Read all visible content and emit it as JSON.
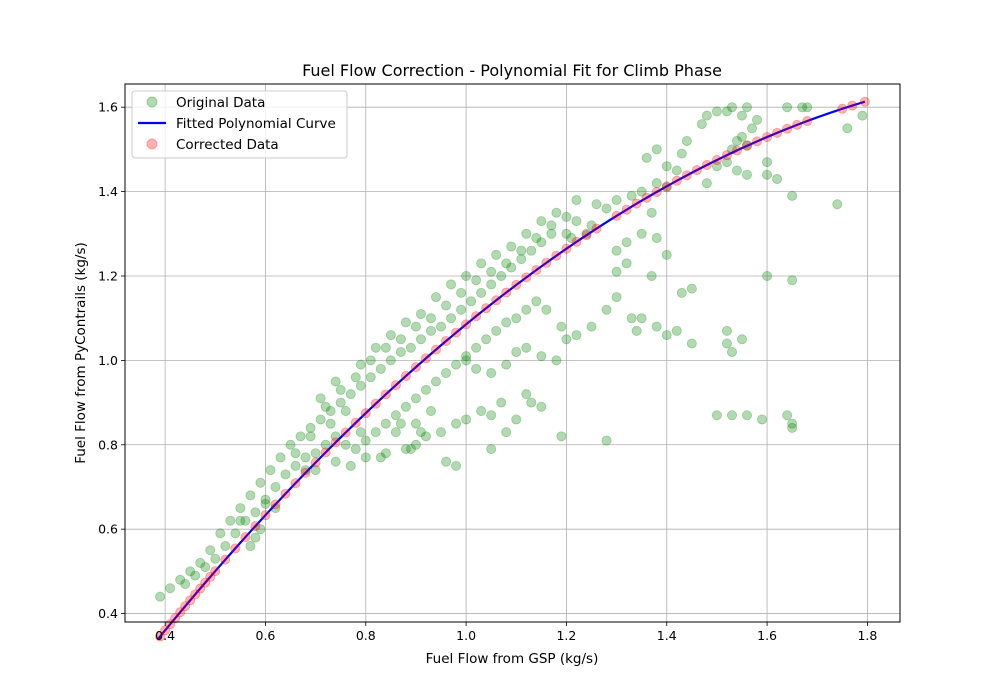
{
  "chart_data": {
    "type": "scatter",
    "title": "Fuel Flow Correction - Polynomial Fit for Climb Phase",
    "xlabel": "Fuel Flow from GSP (kg/s)",
    "ylabel": "Fuel Flow from PyContrails (kg/s)",
    "xlim": [
      0.32,
      1.865
    ],
    "ylim": [
      0.38,
      1.655
    ],
    "xticks": [
      0.4,
      0.6,
      0.8,
      1.0,
      1.2,
      1.4,
      1.6,
      1.8
    ],
    "yticks": [
      0.4,
      0.6,
      0.8,
      1.0,
      1.2,
      1.4,
      1.6
    ],
    "xtick_labels": [
      "0.4",
      "0.6",
      "0.8",
      "1.0",
      "1.2",
      "1.4",
      "1.6",
      "1.8"
    ],
    "ytick_labels": [
      "0.4",
      "0.6",
      "0.8",
      "1.0",
      "1.2",
      "1.4",
      "1.6"
    ],
    "grid": true,
    "legend_position": "top-left",
    "series": [
      {
        "name": "Original Data",
        "kind": "scatter",
        "color": "#008000",
        "opacity": 0.3,
        "points": [
          [
            0.39,
            0.44
          ],
          [
            0.41,
            0.46
          ],
          [
            0.43,
            0.48
          ],
          [
            0.45,
            0.5
          ],
          [
            0.47,
            0.52
          ],
          [
            0.49,
            0.55
          ],
          [
            0.51,
            0.59
          ],
          [
            0.53,
            0.62
          ],
          [
            0.55,
            0.65
          ],
          [
            0.57,
            0.68
          ],
          [
            0.59,
            0.71
          ],
          [
            0.61,
            0.74
          ],
          [
            0.63,
            0.77
          ],
          [
            0.65,
            0.8
          ],
          [
            0.67,
            0.82
          ],
          [
            0.69,
            0.84
          ],
          [
            0.71,
            0.86
          ],
          [
            0.73,
            0.88
          ],
          [
            0.75,
            0.9
          ],
          [
            0.77,
            0.92
          ],
          [
            0.79,
            0.94
          ],
          [
            0.81,
            0.96
          ],
          [
            0.83,
            0.98
          ],
          [
            0.85,
            1.0
          ],
          [
            0.87,
            1.02
          ],
          [
            0.89,
            1.03
          ],
          [
            0.91,
            1.05
          ],
          [
            0.93,
            1.07
          ],
          [
            0.95,
            1.08
          ],
          [
            0.97,
            1.1
          ],
          [
            0.99,
            1.12
          ],
          [
            1.01,
            1.14
          ],
          [
            1.03,
            1.16
          ],
          [
            1.05,
            1.18
          ],
          [
            1.07,
            1.2
          ],
          [
            1.09,
            1.22
          ],
          [
            1.11,
            1.24
          ],
          [
            1.13,
            1.26
          ],
          [
            1.15,
            1.28
          ],
          [
            1.17,
            1.3
          ],
          [
            0.44,
            0.47
          ],
          [
            0.46,
            0.49
          ],
          [
            0.48,
            0.51
          ],
          [
            0.5,
            0.53
          ],
          [
            0.52,
            0.56
          ],
          [
            0.54,
            0.59
          ],
          [
            0.56,
            0.62
          ],
          [
            0.58,
            0.64
          ],
          [
            0.6,
            0.67
          ],
          [
            0.62,
            0.7
          ],
          [
            0.64,
            0.73
          ],
          [
            0.66,
            0.75
          ],
          [
            0.68,
            0.77
          ],
          [
            0.7,
            0.78
          ],
          [
            0.72,
            0.8
          ],
          [
            0.74,
            0.82
          ],
          [
            0.76,
            0.8
          ],
          [
            0.78,
            0.79
          ],
          [
            0.8,
            0.81
          ],
          [
            0.82,
            0.83
          ],
          [
            0.84,
            0.85
          ],
          [
            0.86,
            0.87
          ],
          [
            0.88,
            0.89
          ],
          [
            0.9,
            0.91
          ],
          [
            0.92,
            0.93
          ],
          [
            0.94,
            0.95
          ],
          [
            0.96,
            0.97
          ],
          [
            0.98,
            0.99
          ],
          [
            1.0,
            1.01
          ],
          [
            1.02,
            1.03
          ],
          [
            1.04,
            1.05
          ],
          [
            1.06,
            1.07
          ],
          [
            1.08,
            1.09
          ],
          [
            1.1,
            1.1
          ],
          [
            1.12,
            1.12
          ],
          [
            1.14,
            1.14
          ],
          [
            0.72,
            0.89
          ],
          [
            0.75,
            0.93
          ],
          [
            0.78,
            0.96
          ],
          [
            0.81,
            1.0
          ],
          [
            0.84,
            1.03
          ],
          [
            0.87,
            1.05
          ],
          [
            0.9,
            1.08
          ],
          [
            0.93,
            1.1
          ],
          [
            0.96,
            1.13
          ],
          [
            0.99,
            1.16
          ],
          [
            1.02,
            1.19
          ],
          [
            1.05,
            1.21
          ],
          [
            1.08,
            1.23
          ],
          [
            1.11,
            1.26
          ],
          [
            1.14,
            1.29
          ],
          [
            1.17,
            1.32
          ],
          [
            1.2,
            1.34
          ],
          [
            0.8,
            0.77
          ],
          [
            0.84,
            0.78
          ],
          [
            0.88,
            0.79
          ],
          [
            0.9,
            0.8
          ],
          [
            0.92,
            0.82
          ],
          [
            0.95,
            0.83
          ],
          [
            0.98,
            0.85
          ],
          [
            1.0,
            0.86
          ],
          [
            1.03,
            0.88
          ],
          [
            1.05,
            0.79
          ],
          [
            1.08,
            0.83
          ],
          [
            1.1,
            0.86
          ],
          [
            1.13,
            0.9
          ],
          [
            1.15,
            0.89
          ],
          [
            0.96,
            0.76
          ],
          [
            0.98,
            0.75
          ],
          [
            1.05,
            0.87
          ],
          [
            1.07,
            0.9
          ],
          [
            1.12,
            0.92
          ],
          [
            0.93,
            0.88
          ],
          [
            0.9,
            0.85
          ],
          [
            0.86,
            0.83
          ],
          [
            1.0,
            1.0
          ],
          [
            1.02,
            0.98
          ],
          [
            1.05,
            0.97
          ],
          [
            1.08,
            0.99
          ],
          [
            1.1,
            1.02
          ],
          [
            1.12,
            1.03
          ],
          [
            1.15,
            1.01
          ],
          [
            1.18,
            1.0
          ],
          [
            1.2,
            1.05
          ],
          [
            1.22,
            1.06
          ],
          [
            1.25,
            1.08
          ],
          [
            1.28,
            1.12
          ],
          [
            1.3,
            1.15
          ],
          [
            1.19,
            1.08
          ],
          [
            1.16,
            1.12
          ],
          [
            1.2,
            1.3
          ],
          [
            1.22,
            1.33
          ],
          [
            1.25,
            1.32
          ],
          [
            1.28,
            1.36
          ],
          [
            1.3,
            1.38
          ],
          [
            1.33,
            1.39
          ],
          [
            1.35,
            1.4
          ],
          [
            1.38,
            1.42
          ],
          [
            1.4,
            1.41
          ],
          [
            1.3,
            1.26
          ],
          [
            1.32,
            1.28
          ],
          [
            1.35,
            1.3
          ],
          [
            1.38,
            1.29
          ],
          [
            1.37,
            1.35
          ],
          [
            1.36,
            1.48
          ],
          [
            1.38,
            1.5
          ],
          [
            1.4,
            1.46
          ],
          [
            1.43,
            1.49
          ],
          [
            1.44,
            1.52
          ],
          [
            1.42,
            1.45
          ],
          [
            1.35,
            1.1
          ],
          [
            1.38,
            1.08
          ],
          [
            1.4,
            1.06
          ],
          [
            1.42,
            1.07
          ],
          [
            1.45,
            1.04
          ],
          [
            1.33,
            1.1
          ],
          [
            1.34,
            1.07
          ],
          [
            1.37,
            1.2
          ],
          [
            1.43,
            1.16
          ],
          [
            1.45,
            1.17
          ],
          [
            1.3,
            1.21
          ],
          [
            1.32,
            1.23
          ],
          [
            1.4,
            1.25
          ],
          [
            1.47,
            1.56
          ],
          [
            1.48,
            1.58
          ],
          [
            1.5,
            1.59
          ],
          [
            1.52,
            1.59
          ],
          [
            1.53,
            1.6
          ],
          [
            1.55,
            1.58
          ],
          [
            1.56,
            1.6
          ],
          [
            1.58,
            1.57
          ],
          [
            1.55,
            1.53
          ],
          [
            1.54,
            1.52
          ],
          [
            1.56,
            1.51
          ],
          [
            1.57,
            1.55
          ],
          [
            1.54,
            1.45
          ],
          [
            1.56,
            1.44
          ],
          [
            1.5,
            1.46
          ],
          [
            1.52,
            1.47
          ],
          [
            1.53,
            1.5
          ],
          [
            1.48,
            1.42
          ],
          [
            1.6,
            1.44
          ],
          [
            1.62,
            1.43
          ],
          [
            1.65,
            1.39
          ],
          [
            1.64,
            1.6
          ],
          [
            1.67,
            1.6
          ],
          [
            1.68,
            1.6
          ],
          [
            1.76,
            1.55
          ],
          [
            1.79,
            1.58
          ],
          [
            1.74,
            1.37
          ],
          [
            1.6,
            1.47
          ],
          [
            1.5,
            0.87
          ],
          [
            1.53,
            0.87
          ],
          [
            1.56,
            0.87
          ],
          [
            1.59,
            0.86
          ],
          [
            1.64,
            0.87
          ],
          [
            1.65,
            0.85
          ],
          [
            1.65,
            0.84
          ],
          [
            1.52,
            1.04
          ],
          [
            1.53,
            1.02
          ],
          [
            1.55,
            1.05
          ],
          [
            1.52,
            1.07
          ],
          [
            1.6,
            1.2
          ],
          [
            1.65,
            1.19
          ],
          [
            1.28,
            0.81
          ],
          [
            1.19,
            0.82
          ],
          [
            0.57,
            0.56
          ],
          [
            0.58,
            0.58
          ],
          [
            0.59,
            0.6
          ],
          [
            0.62,
            0.65
          ],
          [
            0.55,
            0.62
          ],
          [
            0.6,
            0.66
          ],
          [
            0.66,
            0.78
          ],
          [
            0.68,
            0.74
          ],
          [
            0.7,
            0.74
          ],
          [
            0.74,
            0.76
          ],
          [
            0.77,
            0.75
          ],
          [
            0.79,
            0.83
          ],
          [
            0.83,
            0.77
          ],
          [
            0.87,
            0.85
          ],
          [
            0.89,
            0.79
          ],
          [
            0.91,
            0.83
          ],
          [
            0.76,
            0.88
          ],
          [
            0.73,
            0.85
          ],
          [
            0.69,
            0.82
          ],
          [
            0.71,
            0.91
          ],
          [
            0.74,
            0.95
          ],
          [
            0.79,
            0.99
          ],
          [
            0.82,
            1.03
          ],
          [
            0.85,
            1.06
          ],
          [
            0.88,
            1.09
          ],
          [
            0.91,
            1.11
          ],
          [
            0.94,
            1.15
          ],
          [
            0.97,
            1.18
          ],
          [
            1.0,
            1.2
          ],
          [
            1.03,
            1.23
          ],
          [
            1.06,
            1.25
          ],
          [
            1.09,
            1.27
          ],
          [
            1.12,
            1.3
          ],
          [
            1.15,
            1.33
          ],
          [
            1.18,
            1.35
          ],
          [
            1.22,
            1.38
          ],
          [
            1.26,
            1.37
          ],
          [
            1.24,
            1.3
          ],
          [
            1.21,
            1.29
          ]
        ]
      },
      {
        "name": "Fitted Polynomial Curve",
        "kind": "line",
        "color": "#0000ff",
        "coefficients": [
          -0.2795,
          1.7556,
          -0.3907
        ],
        "x_range": [
          0.385,
          1.795
        ]
      },
      {
        "name": "Corrected Data",
        "kind": "scatter",
        "color": "#ff0000",
        "opacity": 0.3,
        "x_values": [
          0.39,
          0.4,
          0.41,
          0.42,
          0.43,
          0.44,
          0.45,
          0.46,
          0.47,
          0.48,
          0.49,
          0.5,
          0.52,
          0.54,
          0.56,
          0.58,
          0.6,
          0.62,
          0.64,
          0.66,
          0.68,
          0.7,
          0.72,
          0.74,
          0.76,
          0.78,
          0.8,
          0.82,
          0.84,
          0.86,
          0.88,
          0.9,
          0.92,
          0.94,
          0.96,
          0.98,
          1.0,
          1.02,
          1.04,
          1.06,
          1.08,
          1.1,
          1.12,
          1.14,
          1.16,
          1.18,
          1.2,
          1.22,
          1.24,
          1.26,
          1.3,
          1.32,
          1.34,
          1.36,
          1.38,
          1.4,
          1.42,
          1.44,
          1.46,
          1.48,
          1.5,
          1.52,
          1.54,
          1.56,
          1.58,
          1.6,
          1.62,
          1.64,
          1.66,
          1.68,
          1.75,
          1.77,
          1.795
        ]
      }
    ]
  },
  "colors": {
    "original": "#008000",
    "fitted": "#0000ff",
    "corrected": "#ff0000",
    "grid": "#b0b0b0"
  }
}
